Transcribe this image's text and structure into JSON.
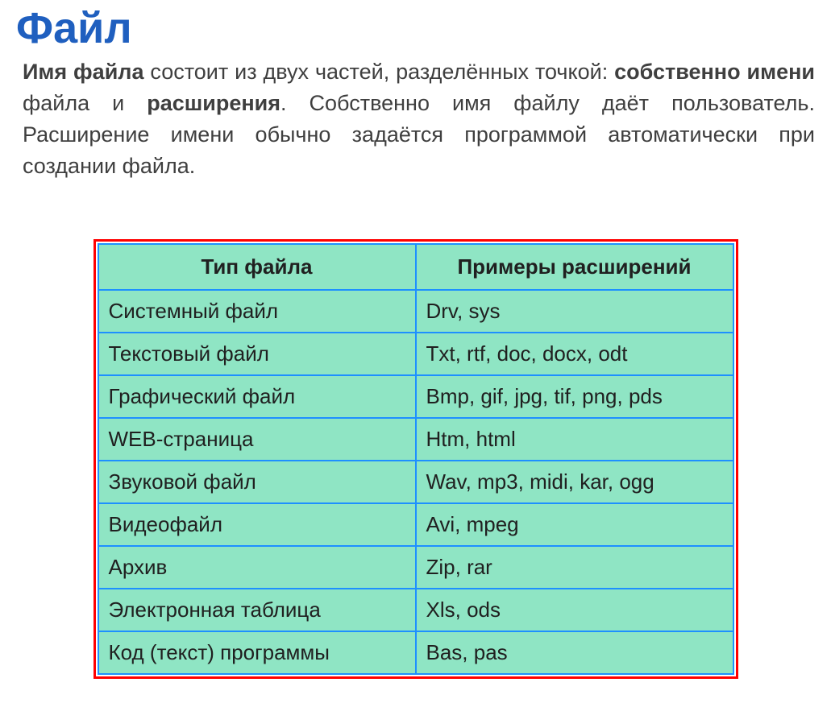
{
  "title": "Файл",
  "paragraph": {
    "seg1_bold": "Имя файла",
    "seg2": " состоит из двух частей, разделённых точкой: ",
    "seg3_bold": "собственно имени",
    "seg4": " файла и ",
    "seg5_bold": "расширения",
    "seg6": ".   Собственно имя файлу даёт пользователь. Расширение имени обычно задаётся программой автоматически при создании файла."
  },
  "table": {
    "headers": [
      "Тип файла",
      "Примеры расширений"
    ],
    "rows": [
      [
        "Системный файл",
        "Drv, sys"
      ],
      [
        "Текстовый файл",
        "Txt, rtf, doc, docx, odt"
      ],
      [
        "Графический файл",
        "Bmp, gif, jpg, tif, png, pds"
      ],
      [
        "WEB-страница",
        "Htm, html"
      ],
      [
        "Звуковой файл",
        "Wav, mp3, midi, kar, ogg"
      ],
      [
        "Видеофайл",
        "Avi, mpeg"
      ],
      [
        "Архив",
        "Zip, rar"
      ],
      [
        "Электронная таблица",
        "Xls, ods"
      ],
      [
        "Код (текст) программы",
        "Bas, pas"
      ]
    ],
    "style": {
      "outer_border_color": "#ff0000",
      "cell_border_color": "#1e90ff",
      "cell_bg_color": "#8fe5c4",
      "header_fontsize": 26,
      "cell_fontsize": 26,
      "text_color": "#202020"
    }
  },
  "colors": {
    "title_color": "#1f5fbf",
    "paragraph_color": "#3f3f3f",
    "background_color": "#ffffff"
  }
}
